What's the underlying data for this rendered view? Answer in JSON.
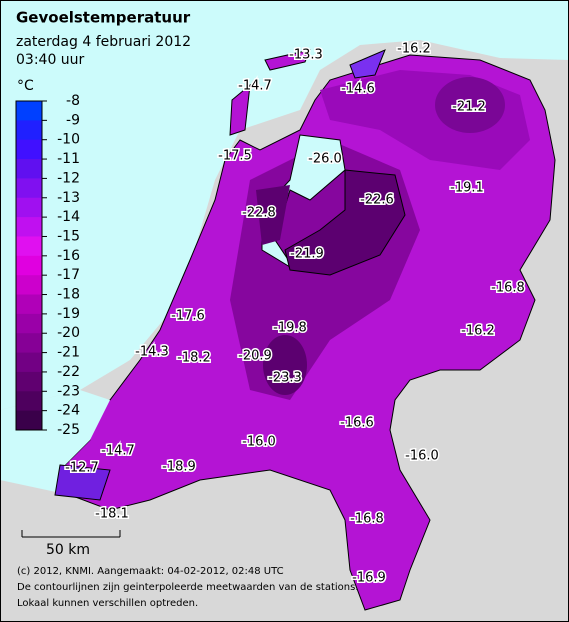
{
  "header": {
    "title": "Gevoelstemperatuur",
    "date": "zaterdag 4 februari 2012",
    "time": "03:40 uur"
  },
  "legend": {
    "unit": "°C",
    "levels": [
      -8,
      -9,
      -10,
      -11,
      -12,
      -13,
      -14,
      -15,
      -16,
      -17,
      -18,
      -19,
      -20,
      -21,
      -22,
      -23,
      -24,
      -25
    ],
    "colors": [
      "#0040ff",
      "#2020ff",
      "#4010ff",
      "#6010f0",
      "#8010f0",
      "#a010f0",
      "#c010f0",
      "#e010f0",
      "#e000e0",
      "#cc00cc",
      "#b000b8",
      "#9a00a8",
      "#860096",
      "#720084",
      "#600070",
      "#4e005e",
      "#3a004a"
    ]
  },
  "stations": [
    "-13.3",
    "-16.2",
    "-14.7",
    "-14.6",
    "-21.2",
    "-17.5",
    "-26.0",
    "-19.1",
    "-22.8",
    "-22.6",
    "-21.9",
    "-16.8",
    "-17.6",
    "-19.8",
    "-16.2",
    "-14.3",
    "-18.2",
    "-20.9",
    "-23.3",
    "-16.6",
    "-16.0",
    "-16.0",
    "-14.7",
    "-12.7",
    "-18.9",
    "-18.1",
    "-16.8",
    "-16.9"
  ],
  "scale": "50 km",
  "footer": [
    "(c) 2012, KNMI. Aangemaakt: 04-02-2012, 02:48 UTC",
    "De contourlijnen zijn geinterpoleerde meetwaarden van de stations.",
    "Lokaal kunnen verschillen optreden."
  ]
}
